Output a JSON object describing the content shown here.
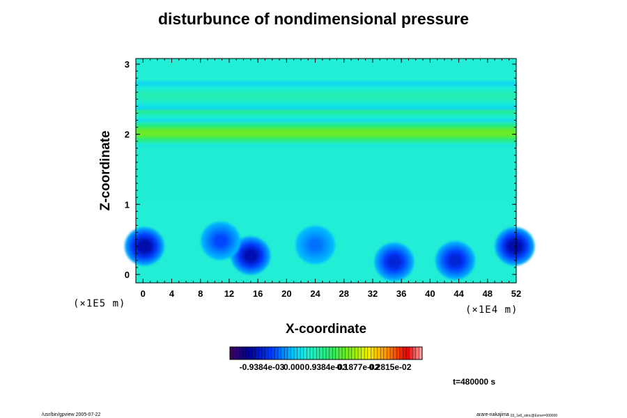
{
  "chart_data": {
    "type": "heatmap",
    "title": "disturbunce of nondimensional pressure",
    "xlabel": "X-coordinate",
    "ylabel": "Z-coordinate",
    "x_unit": "(×1E4 m)",
    "y_unit": "(×1E5 m)",
    "x_ticks": [
      "0",
      "4",
      "8",
      "12",
      "16",
      "20",
      "24",
      "28",
      "32",
      "36",
      "40",
      "44",
      "48",
      "52"
    ],
    "y_ticks": [
      "0",
      "1",
      "2",
      "3"
    ],
    "xlim": [
      -1,
      52
    ],
    "ylim": [
      -0.12,
      3.08
    ],
    "colorbar_labels": [
      "-0.9384e-03",
      "0.000",
      "0.9384e-03",
      "0.1877e-02",
      "0.2815e-02"
    ],
    "colorbar_range": [
      -0.001877,
      0.003753
    ],
    "time_label": "t=480000 s",
    "background_value": 0.0,
    "low_pressure_cells": [
      {
        "x": 0.2,
        "z": 0.4,
        "value": -0.0012
      },
      {
        "x": 15,
        "z": 0.27,
        "value": -0.00115
      },
      {
        "x": 35,
        "z": 0.18,
        "value": -0.0009
      },
      {
        "x": 43.5,
        "z": 0.2,
        "value": -0.0009
      },
      {
        "x": 51.8,
        "z": 0.4,
        "value": -0.0012
      },
      {
        "x": 10.8,
        "z": 0.48,
        "value": -0.0006
      },
      {
        "x": 24,
        "z": 0.42,
        "value": -0.0004
      }
    ],
    "high_pressure_bands": [
      {
        "z": 2.02,
        "value": 0.0015
      },
      {
        "z": 2.38,
        "value": 0.0009
      },
      {
        "z": 2.55,
        "value": 0.0006
      }
    ]
  },
  "footer": {
    "left": "/usr/bin/gpview 2005-07-22",
    "right": "arare-nakajima",
    "right_sub": "03_1e6_stinc@Exner=000000"
  }
}
